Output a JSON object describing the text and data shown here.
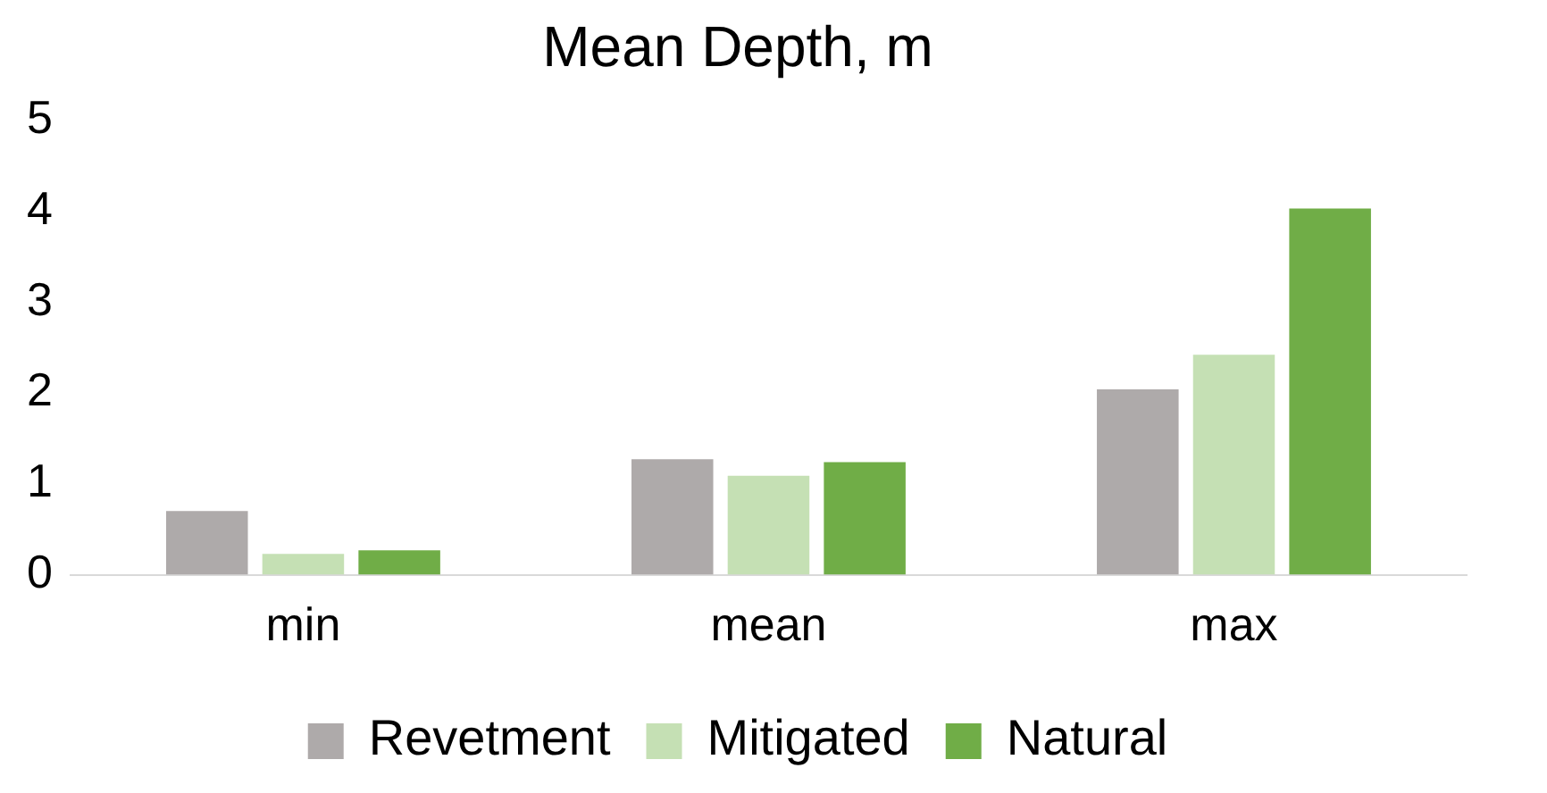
{
  "chart_data": {
    "type": "bar",
    "title": "Mean Depth, m",
    "categories": [
      "min",
      "mean",
      "max"
    ],
    "series": [
      {
        "name": "Revetment",
        "color": "#aeaaaa",
        "values": [
          0.7,
          1.27,
          2.04
        ]
      },
      {
        "name": "Mitigated",
        "color": "#c5e0b4",
        "values": [
          0.23,
          1.09,
          2.42
        ]
      },
      {
        "name": "Natural",
        "color": "#70ad47",
        "values": [
          0.27,
          1.24,
          4.03
        ]
      }
    ],
    "ylim": [
      0,
      5
    ],
    "yticks": [
      0,
      1,
      2,
      3,
      4,
      5
    ],
    "grid": false,
    "legend": "bottom"
  }
}
